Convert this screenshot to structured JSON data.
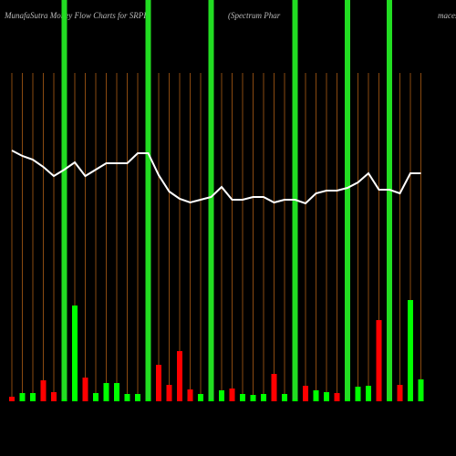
{
  "chart_data": {
    "type": "bar",
    "title": "MunafaSutra  Money Flow  Charts for SRPI",
    "subtitle": "(Spectrum Phar",
    "subtitle_end": "maces",
    "values": [
      5,
      9,
      9,
      23,
      10,
      2,
      105,
      26,
      9,
      20,
      20,
      8,
      8,
      2,
      40,
      18,
      55,
      13,
      8,
      2,
      12,
      14,
      8,
      7,
      8,
      30,
      8,
      2,
      17,
      12,
      10,
      9,
      2,
      16,
      17,
      89,
      2,
      18,
      111,
      24
    ],
    "colors": [
      "#ff0000",
      "#00ff00",
      "#00ff00",
      "#ff0000",
      "#ff0000",
      "#00ff00",
      "#00ff00",
      "#ff0000",
      "#00ff00",
      "#00ff00",
      "#00ff00",
      "#00ff00",
      "#00ff00",
      "#00ff00",
      "#ff0000",
      "#ff0000",
      "#ff0000",
      "#ff0000",
      "#00ff00",
      "#00ff00",
      "#00ff00",
      "#ff0000",
      "#00ff00",
      "#00ff00",
      "#00ff00",
      "#ff0000",
      "#00ff00",
      "#00ff00",
      "#ff0000",
      "#00ff00",
      "#00ff00",
      "#ff0000",
      "#00ff00",
      "#00ff00",
      "#00ff00",
      "#ff0000",
      "#00ff00",
      "#ff0000",
      "#00ff00",
      "#00ff00"
    ],
    "highlight": [
      false,
      false,
      false,
      false,
      false,
      true,
      false,
      false,
      false,
      false,
      false,
      false,
      false,
      true,
      false,
      false,
      false,
      false,
      false,
      true,
      false,
      false,
      false,
      false,
      false,
      false,
      false,
      true,
      false,
      false,
      false,
      false,
      true,
      false,
      false,
      false,
      true,
      false,
      false,
      false
    ],
    "highlight_color": "#22dd22",
    "line": {
      "color": "#ffffff",
      "values": [
        275,
        269,
        265,
        257,
        247,
        254,
        262,
        247,
        254,
        261,
        261,
        261,
        272,
        272,
        248,
        230,
        222,
        218,
        221,
        224,
        235,
        221,
        221,
        224,
        224,
        218,
        221,
        221,
        217,
        228,
        231,
        231,
        234,
        240,
        250,
        232,
        232,
        228,
        250,
        250
      ]
    },
    "grid_color": "#8a4a10",
    "ylim": [
      0,
      440
    ]
  }
}
